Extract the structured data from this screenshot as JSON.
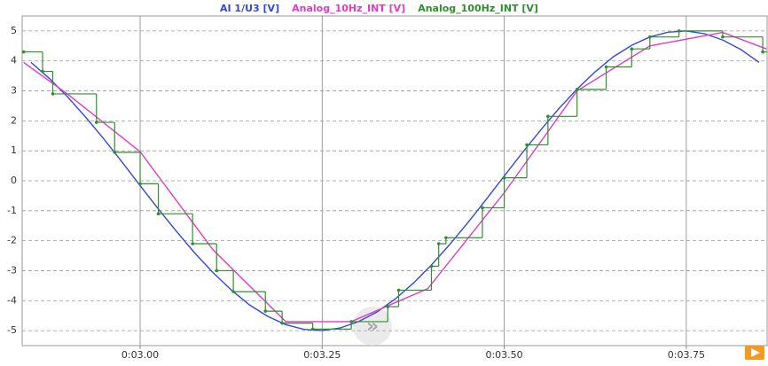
{
  "chart_data": {
    "type": "line",
    "series": [
      {
        "name": "AI 1/U3 [V]",
        "color": "#3548d8",
        "x": [
          2.85,
          2.875,
          2.9,
          2.925,
          2.95,
          2.975,
          3.0,
          3.025,
          3.05,
          3.075,
          3.1,
          3.125,
          3.15,
          3.175,
          3.2,
          3.225,
          3.25,
          3.275,
          3.3,
          3.325,
          3.35,
          3.375,
          3.4,
          3.425,
          3.45,
          3.475,
          3.5,
          3.525,
          3.55,
          3.575,
          3.6,
          3.625,
          3.65,
          3.675,
          3.7,
          3.725,
          3.75,
          3.775,
          3.8,
          3.825,
          3.85
        ],
        "values": [
          3.95,
          3.42,
          2.81,
          2.13,
          1.4,
          0.63,
          -0.16,
          -0.94,
          -1.69,
          -2.41,
          -3.06,
          -3.64,
          -4.14,
          -4.52,
          -4.8,
          -4.96,
          -5.0,
          -4.91,
          -4.7,
          -4.38,
          -3.95,
          -3.42,
          -2.81,
          -2.13,
          -1.4,
          -0.63,
          0.16,
          0.94,
          1.69,
          2.41,
          3.06,
          3.64,
          4.14,
          4.52,
          4.8,
          4.96,
          5.0,
          4.91,
          4.7,
          4.38,
          3.95
        ]
      },
      {
        "name": "Analog_10Hz_INT [V]",
        "color": "#e03cc6",
        "x": [
          2.84,
          2.9,
          3.0,
          3.1,
          3.2,
          3.29,
          3.395,
          3.5,
          3.6,
          3.7,
          3.8,
          3.86
        ],
        "values": [
          3.95,
          2.9,
          0.97,
          -2.3,
          -4.7,
          -4.7,
          -3.6,
          -0.4,
          3.0,
          4.5,
          4.95,
          4.4
        ]
      },
      {
        "name": "Analog_100Hz_INT [V]",
        "color": "#2f8f2f",
        "step": true,
        "x": [
          2.84,
          2.866,
          2.88,
          2.94,
          2.965,
          3.0,
          3.025,
          3.072,
          3.105,
          3.128,
          3.172,
          3.195,
          3.237,
          3.29,
          3.34,
          3.355,
          3.4,
          3.41,
          3.42,
          3.47,
          3.5,
          3.531,
          3.56,
          3.6,
          3.64,
          3.675,
          3.7,
          3.74,
          3.8,
          3.855
        ],
        "values": [
          4.3,
          3.65,
          2.9,
          1.95,
          0.95,
          -0.1,
          -1.1,
          -2.1,
          -3.0,
          -3.7,
          -4.35,
          -4.75,
          -4.95,
          -4.7,
          -4.2,
          -3.65,
          -2.85,
          -2.1,
          -1.9,
          -0.9,
          0.1,
          1.2,
          2.15,
          3.05,
          3.8,
          4.4,
          4.8,
          5.0,
          4.8,
          4.3
        ]
      }
    ],
    "xlim": [
      2.838,
      3.861
    ],
    "xticks": [
      {
        "value": 3.0,
        "label": "0:03.00"
      },
      {
        "value": 3.25,
        "label": "0:03.25"
      },
      {
        "value": 3.5,
        "label": "0:03.50"
      },
      {
        "value": 3.75,
        "label": "0:03.75"
      }
    ],
    "ylim": [
      -5.5,
      5.5
    ],
    "yticks": [
      -5,
      -4,
      -3,
      -2,
      -1,
      0,
      1,
      2,
      3,
      4,
      5
    ],
    "grid": true
  }
}
